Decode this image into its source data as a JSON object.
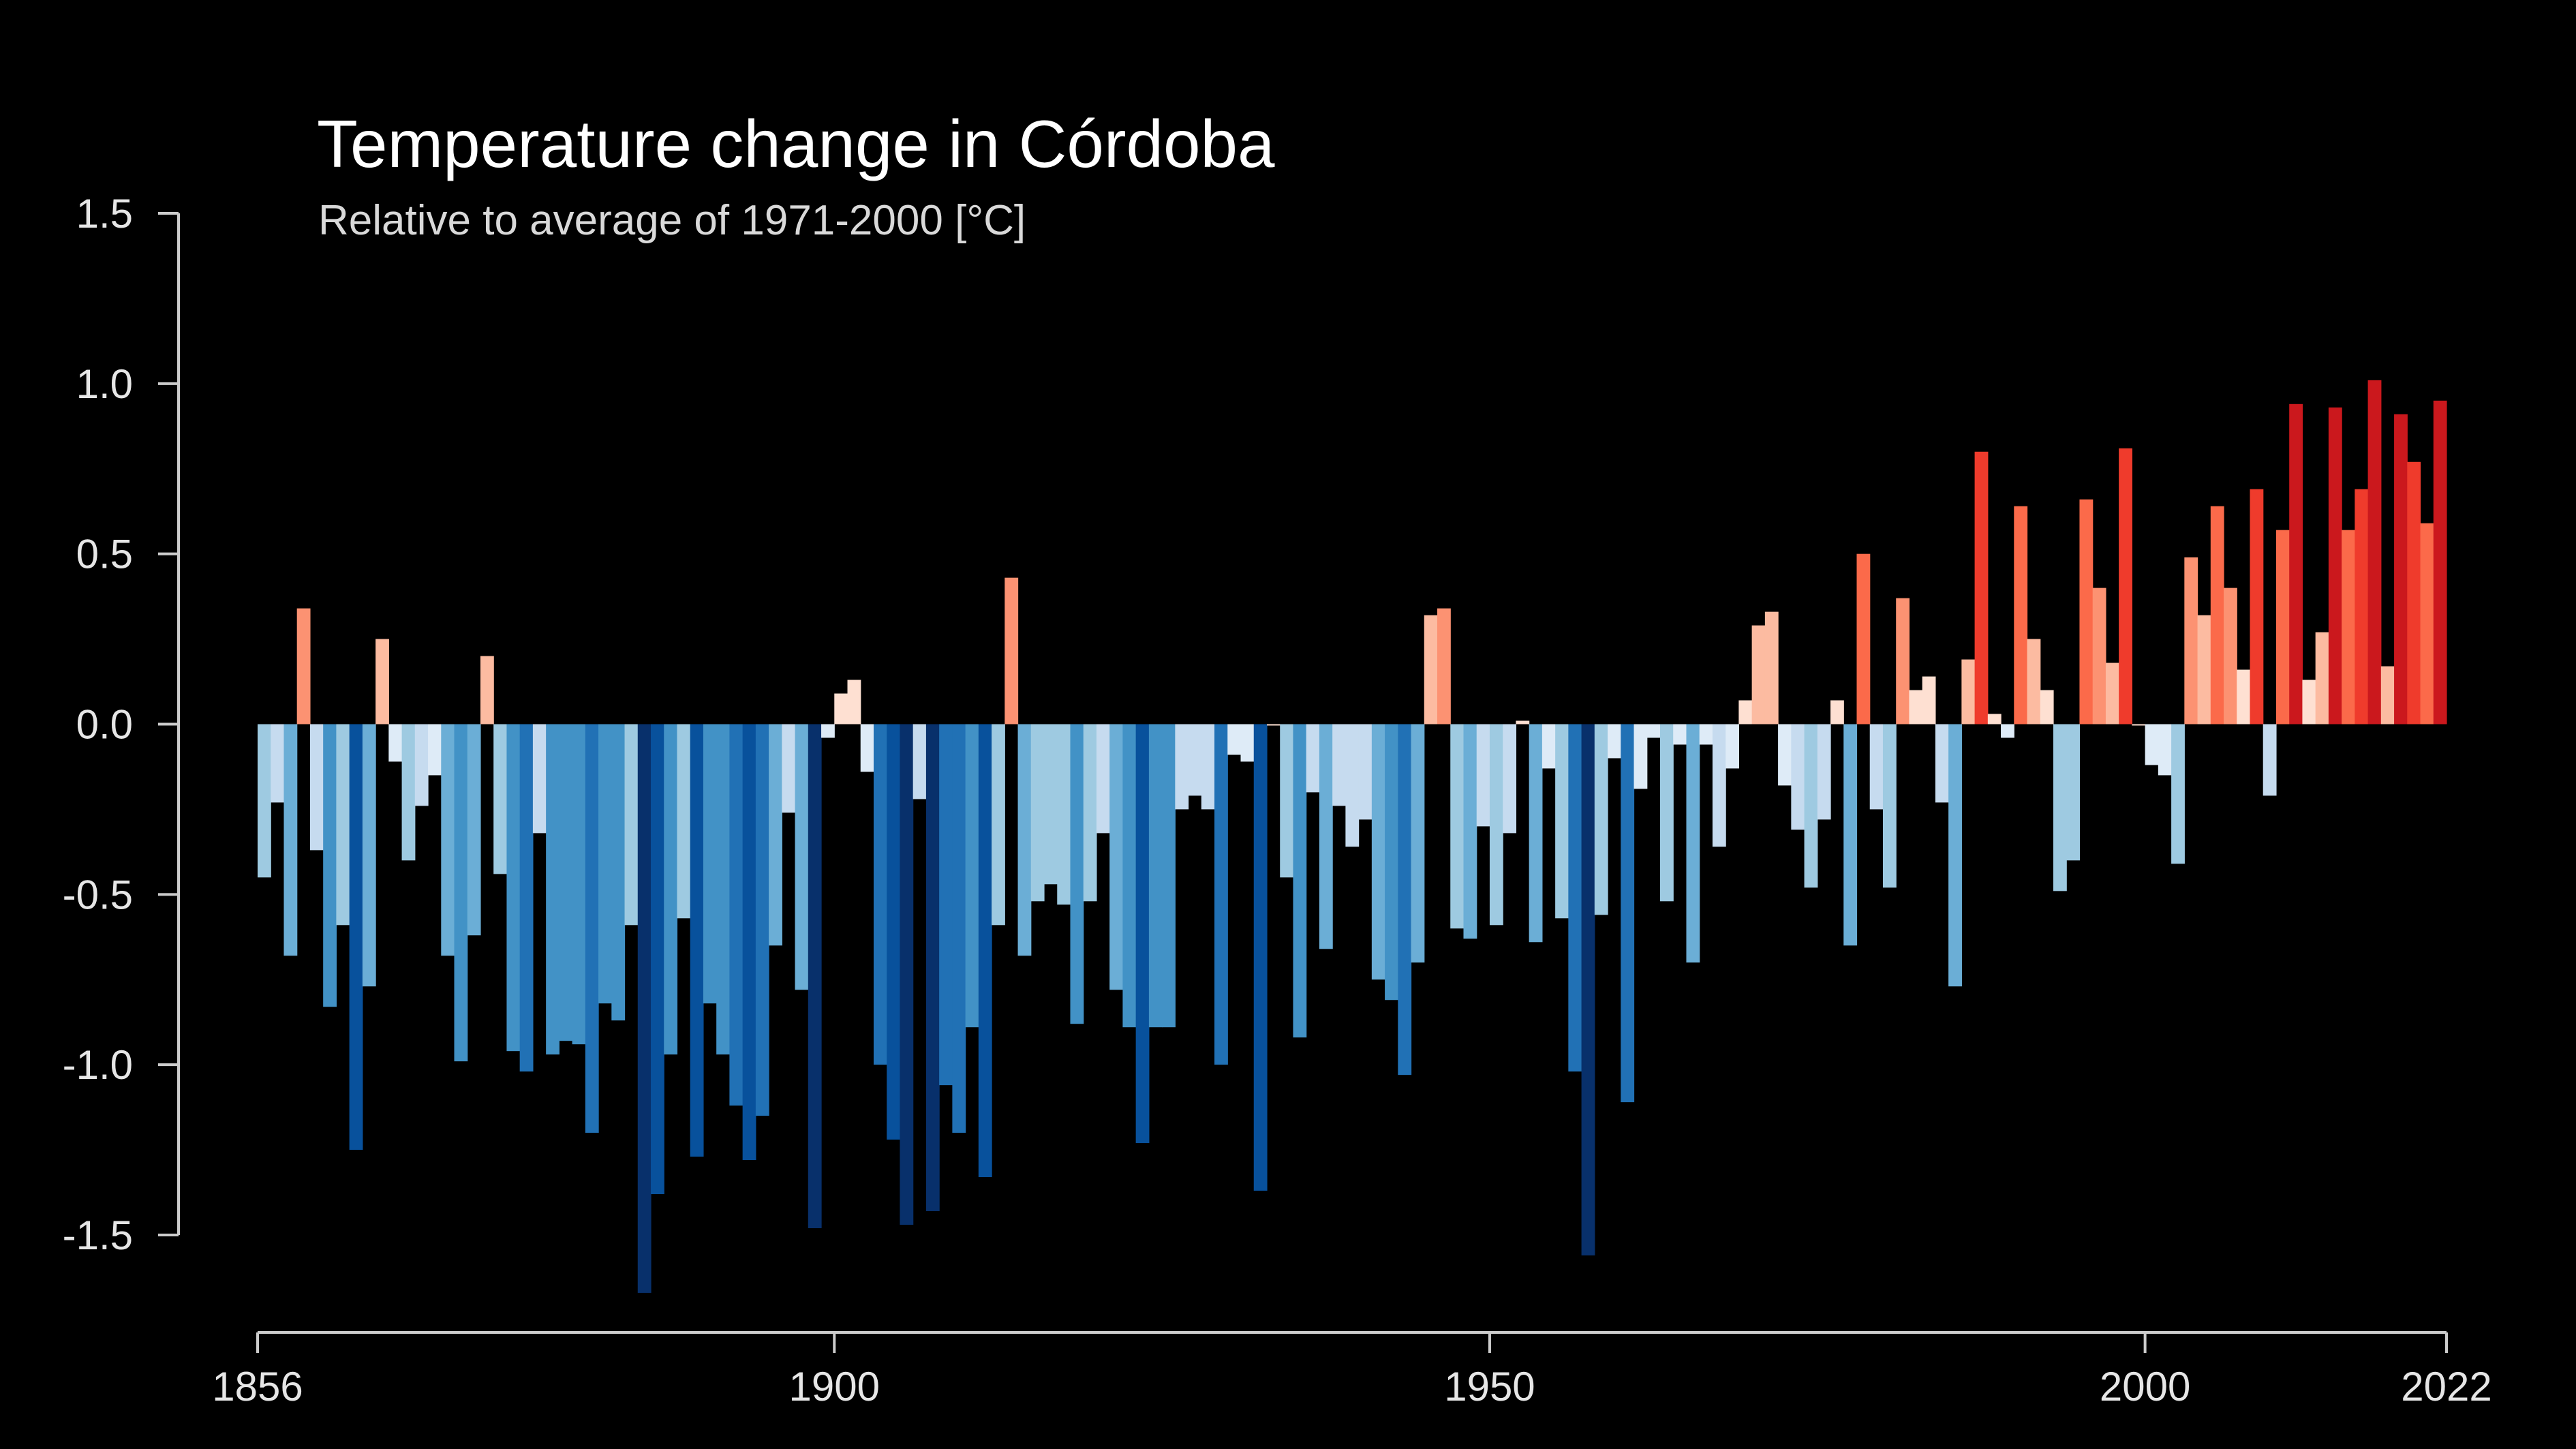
{
  "chart_data": {
    "type": "bar",
    "title": "Temperature change in Córdoba",
    "subtitle": "Relative to average of 1971-2000  [°C]",
    "xlabel": "",
    "ylabel": "",
    "x_start": 1856,
    "x_end": 2022,
    "xlim": [
      1856,
      2022
    ],
    "ylim": [
      -1.5,
      1.5
    ],
    "yticks": [
      1.5,
      1.0,
      0.5,
      0.0,
      -0.5,
      -1.0,
      -1.5
    ],
    "ytick_labels": [
      "1.5",
      "1.0",
      "0.5",
      "0.0",
      "-0.5",
      "-1.0",
      "-1.5"
    ],
    "xticks": [
      1856,
      1900,
      1950,
      2000,
      2022
    ],
    "xtick_labels": [
      "1856",
      "1900",
      "1950",
      "2000",
      "2022"
    ],
    "grid": false,
    "legend": false,
    "color_scale": {
      "cold": [
        "#08306b",
        "#08519c",
        "#2171b5",
        "#4292c6",
        "#6baed6",
        "#9ecae1",
        "#c6dbef",
        "#deebf7"
      ],
      "warm": [
        "#fee0d2",
        "#fcbba1",
        "#fc9272",
        "#fb6a4a",
        "#ef3b2c",
        "#cb181d"
      ],
      "background": "#000000",
      "axis": "#cccccc"
    },
    "values": [
      -0.45,
      -0.23,
      -0.68,
      0.34,
      -0.37,
      -0.83,
      -0.59,
      -1.25,
      -0.77,
      0.25,
      -0.11,
      -0.4,
      -0.24,
      -0.15,
      -0.68,
      -0.99,
      -0.62,
      0.2,
      -0.44,
      -0.96,
      -1.02,
      -0.32,
      -0.97,
      -0.93,
      -0.94,
      -1.2,
      -0.82,
      -0.87,
      -0.59,
      -1.67,
      -1.38,
      -0.97,
      -0.57,
      -1.27,
      -0.82,
      -0.97,
      -1.12,
      -1.28,
      -1.15,
      -0.65,
      -0.26,
      -0.78,
      -1.48,
      -0.04,
      0.09,
      0.13,
      -0.14,
      -1.0,
      -1.22,
      -1.47,
      -0.22,
      -1.43,
      -1.06,
      -1.2,
      -0.89,
      -1.33,
      -0.59,
      0.43,
      -0.68,
      -0.52,
      -0.47,
      -0.53,
      -0.88,
      -0.52,
      -0.32,
      -0.78,
      -0.89,
      -1.23,
      -0.89,
      -0.89,
      -0.25,
      -0.21,
      -0.25,
      -1.0,
      -0.09,
      -0.11,
      -1.37,
      0.0,
      -0.45,
      -0.92,
      -0.2,
      -0.66,
      -0.24,
      -0.36,
      -0.28,
      -0.75,
      -0.81,
      -1.03,
      -0.7,
      0.32,
      0.34,
      -0.6,
      -0.63,
      -0.3,
      -0.59,
      -0.32,
      0.01,
      -0.64,
      -0.13,
      -0.57,
      -1.02,
      -1.56,
      -0.56,
      -0.1,
      -1.11,
      -0.19,
      -0.04,
      -0.52,
      -0.06,
      -0.7,
      -0.06,
      -0.36,
      -0.13,
      0.07,
      0.29,
      0.33,
      -0.18,
      -0.31,
      -0.48,
      -0.28,
      0.07,
      -0.65,
      0.5,
      -0.25,
      -0.48,
      0.37,
      0.1,
      0.14,
      -0.23,
      -0.77,
      0.19,
      0.8,
      0.03,
      -0.04,
      0.64,
      0.25,
      0.1,
      -0.49,
      -0.4,
      0.66,
      0.4,
      0.18,
      0.81,
      0.0,
      -0.12,
      -0.15,
      -0.41,
      0.49,
      0.32,
      0.64,
      0.4,
      0.16,
      0.69,
      -0.21,
      0.57,
      0.94,
      0.13,
      0.27,
      0.93,
      0.57,
      0.69,
      1.01,
      0.17,
      0.91,
      0.77,
      0.59,
      0.95
    ]
  }
}
